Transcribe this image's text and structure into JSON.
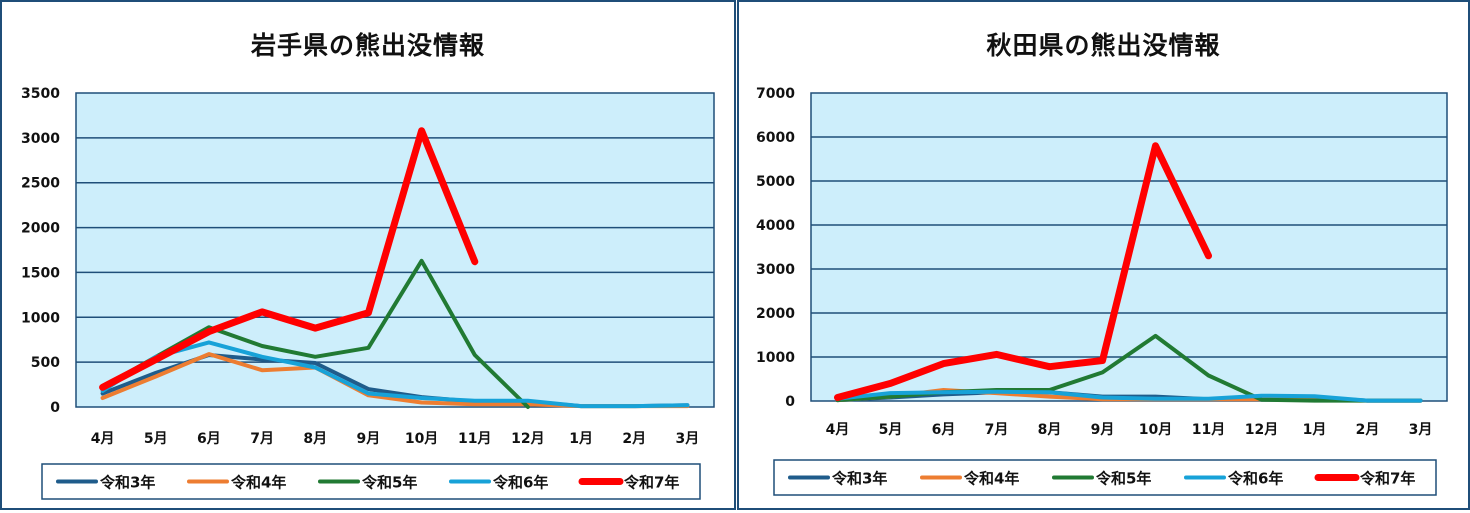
{
  "chart_data": [
    {
      "type": "line",
      "title": "岩手県の熊出没情報",
      "categories": [
        "4月",
        "5月",
        "6月",
        "7月",
        "8月",
        "9月",
        "10月",
        "11月",
        "12月",
        "1月",
        "2月",
        "3月"
      ],
      "ylim": [
        0,
        3500
      ],
      "yticks": [
        0,
        500,
        1000,
        1500,
        2000,
        2500,
        3000,
        3500
      ],
      "grid": true,
      "legend_position": "bottom",
      "series": [
        {
          "name": "令和3年",
          "color": "#1f5c8b",
          "width": 4,
          "values": [
            150,
            380,
            580,
            530,
            490,
            200,
            110,
            60,
            60,
            10,
            10,
            20
          ]
        },
        {
          "name": "令和4年",
          "color": "#ed7d31",
          "width": 4,
          "values": [
            100,
            340,
            590,
            410,
            440,
            130,
            50,
            30,
            30,
            10,
            10,
            10
          ]
        },
        {
          "name": "令和5年",
          "color": "#217a33",
          "width": 4,
          "values": [
            220,
            560,
            890,
            680,
            560,
            660,
            1630,
            580,
            0,
            null,
            null,
            null
          ]
        },
        {
          "name": "令和6年",
          "color": "#17a2d8",
          "width": 4,
          "values": [
            180,
            560,
            720,
            560,
            440,
            150,
            100,
            70,
            70,
            10,
            10,
            20
          ]
        },
        {
          "name": "令和7年",
          "color": "#ff0000",
          "width": 7,
          "values": [
            220,
            530,
            840,
            1060,
            880,
            1050,
            3080,
            1620,
            null,
            null,
            null,
            null
          ]
        }
      ]
    },
    {
      "type": "line",
      "title": "秋田県の熊出没情報",
      "categories": [
        "4月",
        "5月",
        "6月",
        "7月",
        "8月",
        "9月",
        "10月",
        "11月",
        "12月",
        "1月",
        "2月",
        "3月"
      ],
      "ylim": [
        0,
        7000
      ],
      "yticks": [
        0,
        1000,
        2000,
        3000,
        4000,
        5000,
        6000,
        7000
      ],
      "grid": true,
      "legend_position": "bottom",
      "series": [
        {
          "name": "令和3年",
          "color": "#1f5c8b",
          "width": 4,
          "values": [
            20,
            80,
            150,
            200,
            200,
            100,
            100,
            40,
            80,
            80,
            10,
            10
          ]
        },
        {
          "name": "令和4年",
          "color": "#ed7d31",
          "width": 4,
          "values": [
            20,
            100,
            250,
            180,
            100,
            40,
            40,
            40,
            40,
            20,
            10,
            10
          ]
        },
        {
          "name": "令和5年",
          "color": "#217a33",
          "width": 4,
          "values": [
            20,
            100,
            200,
            250,
            250,
            650,
            1480,
            580,
            30,
            10,
            10,
            10
          ]
        },
        {
          "name": "令和6年",
          "color": "#17a2d8",
          "width": 4,
          "values": [
            50,
            180,
            200,
            210,
            200,
            80,
            50,
            50,
            120,
            110,
            10,
            10
          ]
        },
        {
          "name": "令和7年",
          "color": "#ff0000",
          "width": 7,
          "values": [
            80,
            400,
            850,
            1060,
            780,
            920,
            5800,
            3300,
            null,
            null,
            null,
            null
          ]
        }
      ]
    }
  ]
}
